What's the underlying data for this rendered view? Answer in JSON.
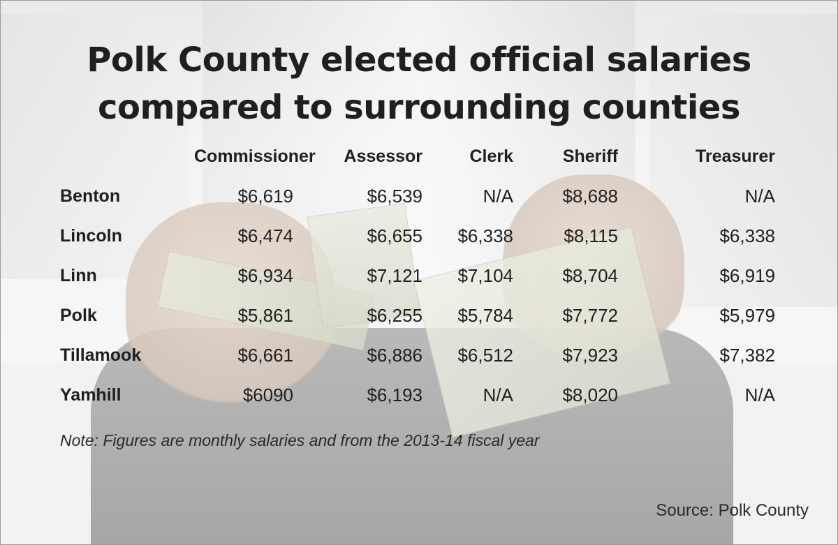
{
  "title_lines": [
    "Polk County elected official salaries",
    "compared to surrounding counties"
  ],
  "note": "Note: Figures are monthly salaries and from the 2013-14 fiscal year",
  "source": "Source: Polk County",
  "chart_data": {
    "type": "table",
    "title": "Polk County elected official salaries compared to surrounding counties",
    "columns": [
      "Commissioner",
      "Assessor",
      "Clerk",
      "Sheriff",
      "Treasurer"
    ],
    "rows": [
      {
        "county": "Benton",
        "values": [
          "$6,619",
          "$6,539",
          "N/A",
          "$8,688",
          "N/A"
        ]
      },
      {
        "county": "Lincoln",
        "values": [
          "$6,474",
          "$6,655",
          "$6,338",
          "$8,115",
          "$6,338"
        ]
      },
      {
        "county": "Linn",
        "values": [
          "$6,934",
          "$7,121",
          "$7,104",
          "$8,704",
          "$6,919"
        ]
      },
      {
        "county": "Polk",
        "values": [
          "$5,861",
          "$6,255",
          "$5,784",
          "$7,772",
          "$5,979"
        ]
      },
      {
        "county": "Tillamook",
        "values": [
          "$6,661",
          "$6,886",
          "$6,512",
          "$7,923",
          "$7,382"
        ]
      },
      {
        "county": "Yamhill",
        "values": [
          "$6090",
          "$6,193",
          "N/A",
          "$8,020",
          "N/A"
        ]
      }
    ]
  }
}
